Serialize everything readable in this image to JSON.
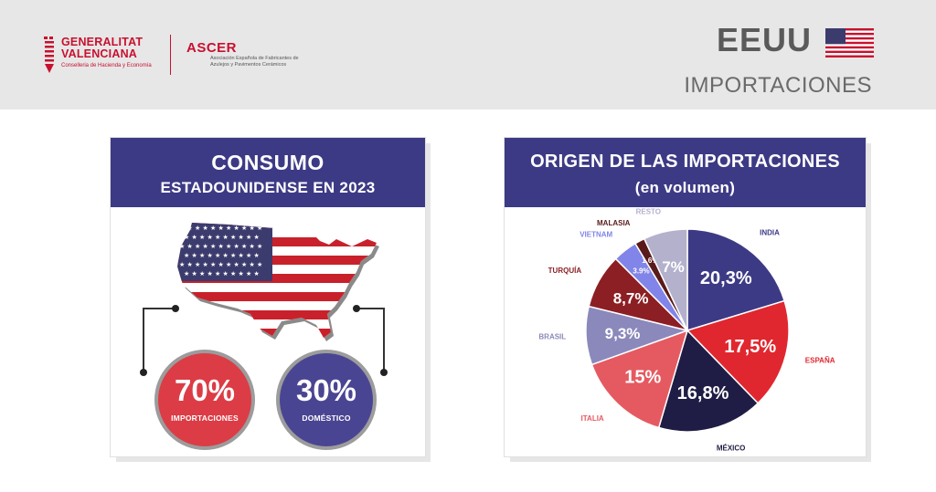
{
  "header": {
    "gv_line1": "GENERALITAT",
    "gv_line2": "VALENCIANA",
    "gv_line3": "Conselleria de Hacienda y Economía",
    "ascer_name": "ASCER",
    "ascer_sub": "Asociación Española de Fabricantes de Azulejos y Pavimentos Cerámicos",
    "country": "EEUU",
    "subtitle": "IMPORTACIONES"
  },
  "consumo": {
    "title_line1": "CONSUMO",
    "title_line2": "ESTADOUNIDENSE EN 2023",
    "importaciones": {
      "value": "70%",
      "label": "IMPORTACIONES",
      "color": "#dc3c45"
    },
    "domestico": {
      "value": "30%",
      "label": "DOMÉSTICO",
      "color": "#4a4592"
    }
  },
  "origen": {
    "title_line1": "ORIGEN DE LAS IMPORTACIONES",
    "title_line2": "(en volumen)"
  },
  "colors": {
    "primary": "#3d3a85",
    "red": "#dc3c45",
    "header_bg": "#e7e7e7"
  },
  "chart_data": {
    "type": "pie",
    "title": "ORIGEN DE LAS IMPORTACIONES (en volumen)",
    "slices": [
      {
        "label": "INDIA",
        "value": 20.3,
        "display": "20,3%",
        "color": "#3d3a85"
      },
      {
        "label": "ESPAÑA",
        "value": 17.5,
        "display": "17,5%",
        "color": "#e0272f"
      },
      {
        "label": "MÉXICO",
        "value": 16.8,
        "display": "16,8%",
        "color": "#1f1d45"
      },
      {
        "label": "ITALIA",
        "value": 15,
        "display": "15%",
        "color": "#e55a61"
      },
      {
        "label": "BRASIL",
        "value": 9.3,
        "display": "9,3%",
        "color": "#8b89bb"
      },
      {
        "label": "TURQUÍA",
        "value": 8.7,
        "display": "8,7%",
        "color": "#8c1f24"
      },
      {
        "label": "VIETNAM",
        "value": 3.9,
        "display": "3.9%",
        "color": "#8184e8"
      },
      {
        "label": "MALASIA",
        "value": 1.6,
        "display": "1,6%",
        "color": "#5a1a1a"
      },
      {
        "label": "RESTO",
        "value": 7,
        "display": "7%",
        "color": "#b3b1cc"
      }
    ]
  }
}
